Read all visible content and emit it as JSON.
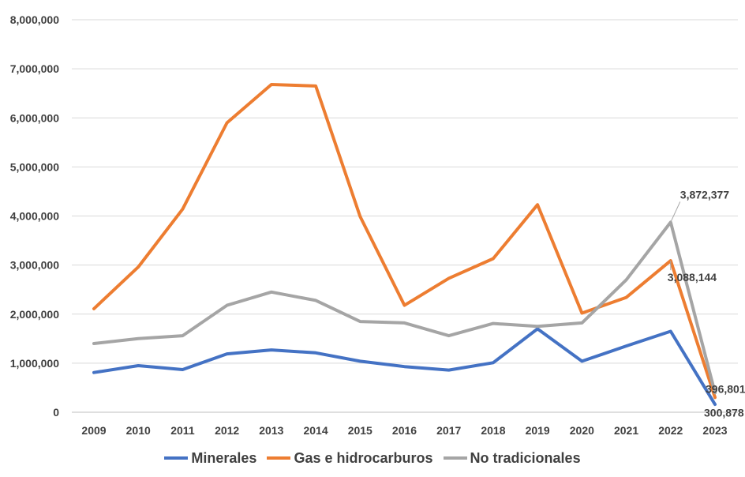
{
  "chart_data": {
    "type": "line",
    "categories": [
      "2009",
      "2010",
      "2011",
      "2012",
      "2013",
      "2014",
      "2015",
      "2016",
      "2017",
      "2018",
      "2019",
      "2020",
      "2021",
      "2022",
      "2023"
    ],
    "ylim": [
      0,
      8000000
    ],
    "ytick_labels": [
      "0",
      "1,000,000",
      "2,000,000",
      "3,000,000",
      "4,000,000",
      "5,000,000",
      "6,000,000",
      "7,000,000",
      "8,000,000"
    ],
    "yticks": [
      0,
      1000000,
      2000000,
      3000000,
      4000000,
      5000000,
      6000000,
      7000000,
      8000000
    ],
    "grid": true,
    "legend": "bottom",
    "series": [
      {
        "name": "Minerales",
        "color": "#4472C4",
        "values": [
          810000,
          950000,
          870000,
          1190000,
          1270000,
          1210000,
          1040000,
          930000,
          860000,
          1010000,
          1700000,
          1040000,
          1350000,
          1650000,
          160000
        ]
      },
      {
        "name": "Gas e hidrocarburos",
        "color": "#ED7D31",
        "values": [
          2110000,
          2960000,
          4140000,
          5900000,
          6680000,
          6650000,
          3990000,
          2180000,
          2730000,
          3130000,
          4230000,
          2020000,
          2340000,
          3088144,
          300878
        ]
      },
      {
        "name": "No tradicionales",
        "color": "#A5A5A5",
        "values": [
          1400000,
          1500000,
          1560000,
          2180000,
          2450000,
          2280000,
          1850000,
          1820000,
          1560000,
          1810000,
          1750000,
          1820000,
          2700000,
          3872377,
          396801
        ]
      }
    ],
    "annotations": [
      {
        "text": "3,872,377",
        "series": 2,
        "index": 13
      },
      {
        "text": "3,088,144",
        "series": 1,
        "index": 13
      },
      {
        "text": "396,801",
        "series": 2,
        "index": 14
      },
      {
        "text": "300,878",
        "series": 1,
        "index": 14
      }
    ]
  }
}
